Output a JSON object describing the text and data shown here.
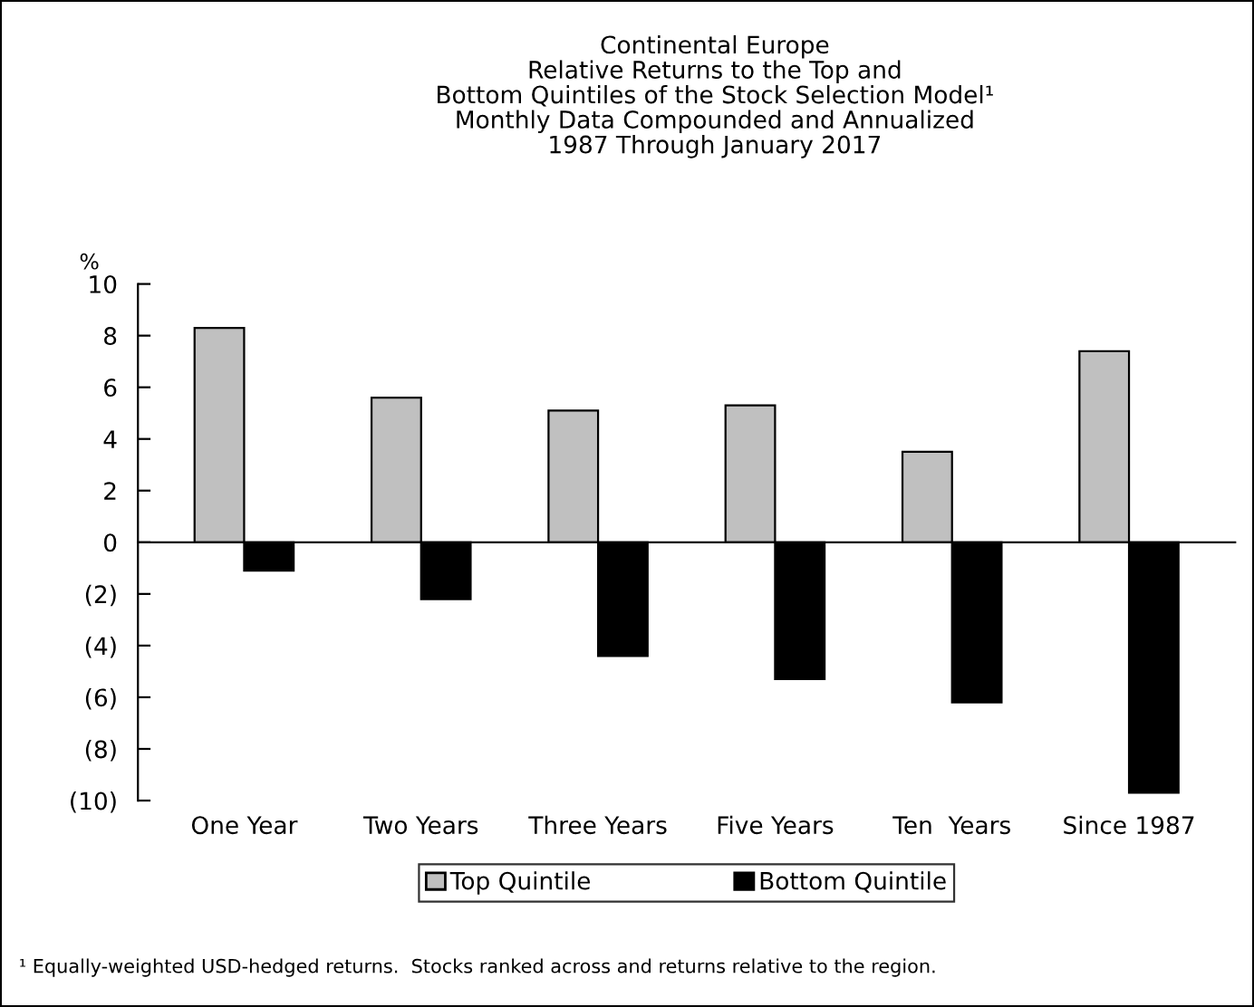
{
  "chart_data": {
    "type": "bar",
    "title": "Continental Europe\nRelative Returns to the Top and\nBottom Quintiles of the Stock Selection Model¹\nMonthly Data Compounded and Annualized\n1987 Through January 2017",
    "ylabel": "%",
    "categories": [
      "One Year",
      "Two Years",
      "Three Years",
      "Five Years",
      "Ten  Years",
      "Since 1987"
    ],
    "series": [
      {
        "name": "Top Quintile",
        "color": "#c0c0c0",
        "values": [
          8.3,
          5.6,
          5.1,
          5.3,
          3.5,
          7.4
        ]
      },
      {
        "name": "Bottom Quintile",
        "color": "#000000",
        "values": [
          -1.1,
          -2.2,
          -4.4,
          -5.3,
          -6.2,
          -9.7
        ]
      }
    ],
    "ylim": [
      -10,
      10
    ],
    "yticks": [
      {
        "value": -10,
        "label": "(10)"
      },
      {
        "value": -8,
        "label": "(8)"
      },
      {
        "value": -6,
        "label": "(6)"
      },
      {
        "value": -4,
        "label": "(4)"
      },
      {
        "value": -2,
        "label": "(2)"
      },
      0,
      2,
      4,
      6,
      8,
      10
    ],
    "legend": "bottom",
    "annotations": [
      "¹ Equally-weighted USD-hedged returns.  Stocks ranked across and returns relative to the region."
    ]
  }
}
